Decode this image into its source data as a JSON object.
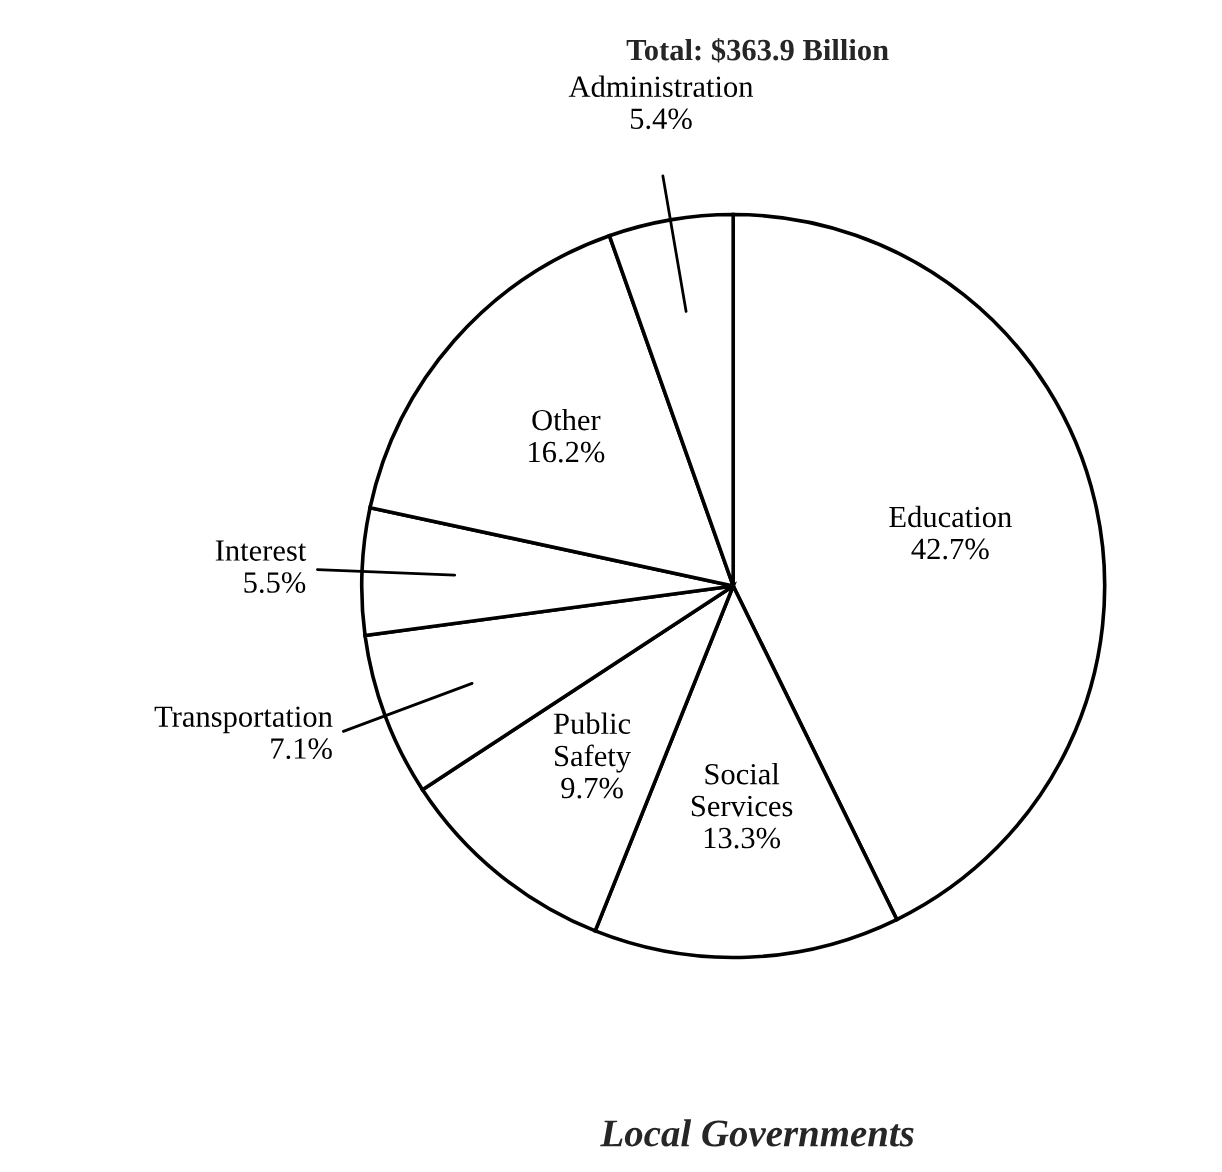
{
  "chart_data": {
    "type": "pie",
    "title": "Local Governments",
    "subtitle": "Total: $363.9 Billion",
    "categories": [
      "Education",
      "Social Services",
      "Public Safety",
      "Transportation",
      "Interest",
      "Other",
      "Administration"
    ],
    "values": [
      42.7,
      13.3,
      9.7,
      7.1,
      5.5,
      16.2,
      5.4
    ],
    "colors": [
      "#ffffff",
      "#ffffff",
      "#ffffff",
      "#ffffff",
      "#ffffff",
      "#ffffff",
      "#ffffff"
    ],
    "value_labels": [
      "42.7%",
      "13.3%",
      "9.7%",
      "7.1%",
      "5.5%",
      "16.2%",
      "5.4%"
    ]
  }
}
